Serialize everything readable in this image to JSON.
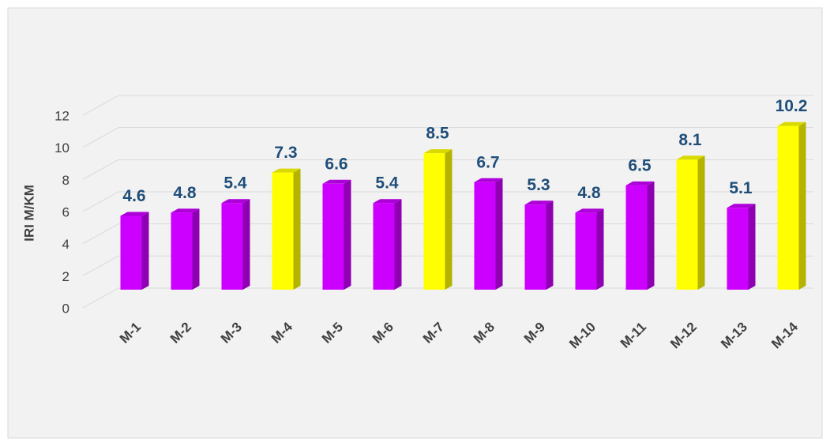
{
  "chart_data": {
    "type": "bar3d",
    "y_axis_label": "IRI M/KM",
    "categories": [
      "M-1",
      "M-2",
      "M-3",
      "M-4",
      "M-5",
      "M-6",
      "M-7",
      "M-8",
      "M-9",
      "M-10",
      "M-11",
      "M-12",
      "M-13",
      "M-14"
    ],
    "values": [
      4.6,
      4.8,
      5.4,
      7.3,
      6.6,
      5.4,
      8.5,
      6.7,
      5.3,
      4.8,
      6.5,
      8.1,
      5.1,
      10.2
    ],
    "colors": [
      "#cc00ff",
      "#cc00ff",
      "#cc00ff",
      "#ffff00",
      "#cc00ff",
      "#cc00ff",
      "#ffff00",
      "#cc00ff",
      "#cc00ff",
      "#cc00ff",
      "#cc00ff",
      "#ffff00",
      "#cc00ff",
      "#ffff00"
    ],
    "ylim": [
      0,
      12
    ],
    "yticks": [
      0,
      2,
      4,
      6,
      8,
      10,
      12
    ],
    "grid": true
  }
}
